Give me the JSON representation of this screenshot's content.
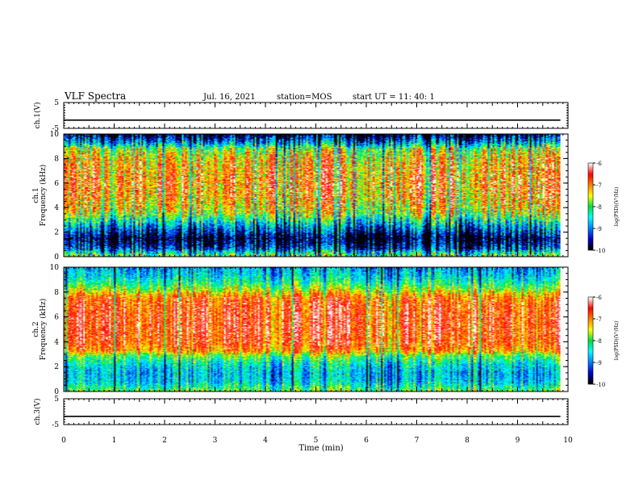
{
  "header": {
    "title": "VLF Spectra",
    "date": "Jul. 16, 2021",
    "station": "station=MOS",
    "start": "start UT =  11: 40: 1"
  },
  "chart_data": [
    {
      "type": "line",
      "ylabel": "ch.1(V)",
      "ylim": [
        -5,
        5
      ],
      "yticks": [
        "5",
        "-5"
      ],
      "xlim": [
        0,
        10
      ],
      "series": [
        {
          "values": [
            [
              0,
              -1.8
            ],
            [
              9.85,
              -1.8
            ]
          ]
        }
      ]
    },
    {
      "type": "heatmap",
      "ylabel": "ch.1\nFrequency (kHz)",
      "ylabel_lines": [
        "ch.1",
        "Frequency (kHz)"
      ],
      "ylim": [
        0,
        10
      ],
      "yticks": [
        "0",
        "2",
        "4",
        "6",
        "8",
        "10"
      ],
      "xlim": [
        0,
        10
      ],
      "data_end_min": 9.85,
      "colorbar": {
        "label": "log(PSD)(V²/Hz)",
        "range": [
          -10,
          -6
        ],
        "ticks": [
          "-6",
          "-7",
          "-8",
          "-9",
          "-10"
        ]
      },
      "frequency_profile_log_psd": [
        [
          0.0,
          -7.8
        ],
        [
          0.3,
          -8.4
        ],
        [
          0.6,
          -9.2
        ],
        [
          1.0,
          -9.6
        ],
        [
          1.5,
          -9.9
        ],
        [
          2.0,
          -9.3
        ],
        [
          2.5,
          -8.8
        ],
        [
          3.0,
          -8.2
        ],
        [
          3.5,
          -7.6
        ],
        [
          4.0,
          -7.3
        ],
        [
          5.0,
          -7.0
        ],
        [
          6.0,
          -6.9
        ],
        [
          7.0,
          -7.0
        ],
        [
          8.0,
          -7.2
        ],
        [
          8.8,
          -7.7
        ],
        [
          9.2,
          -8.6
        ],
        [
          9.6,
          -9.3
        ],
        [
          10.0,
          -9.8
        ]
      ]
    },
    {
      "type": "heatmap",
      "ylabel": "ch.2\nFrequency (kHz)",
      "ylabel_lines": [
        "ch.2",
        "Frequency (kHz)"
      ],
      "ylim": [
        0,
        10
      ],
      "yticks": [
        "0",
        "2",
        "4",
        "6",
        "8",
        "10"
      ],
      "xlim": [
        0,
        10
      ],
      "data_end_min": 9.85,
      "colorbar": {
        "label": "log(PSD)(V²/Hz)",
        "range": [
          -10,
          -6
        ],
        "ticks": [
          "-6",
          "-7",
          "-8",
          "-9",
          "-10"
        ]
      },
      "frequency_profile_log_psd": [
        [
          0.0,
          -7.8
        ],
        [
          0.3,
          -8.2
        ],
        [
          0.8,
          -8.6
        ],
        [
          1.5,
          -8.7
        ],
        [
          2.2,
          -8.4
        ],
        [
          2.8,
          -7.9
        ],
        [
          3.3,
          -7.0
        ],
        [
          4.0,
          -6.7
        ],
        [
          5.0,
          -6.6
        ],
        [
          6.0,
          -6.6
        ],
        [
          7.0,
          -6.7
        ],
        [
          7.6,
          -6.9
        ],
        [
          8.2,
          -7.6
        ],
        [
          8.8,
          -8.2
        ],
        [
          9.4,
          -8.6
        ],
        [
          10.0,
          -8.8
        ]
      ]
    },
    {
      "type": "line",
      "ylabel": "ch.3(V)",
      "ylim": [
        -5,
        5
      ],
      "yticks": [
        "5",
        "-5"
      ],
      "xlim": [
        0,
        10
      ],
      "series": [
        {
          "values": [
            [
              0,
              -1.8
            ],
            [
              9.85,
              -1.8
            ]
          ]
        }
      ]
    }
  ],
  "xaxis": {
    "label": "Time (min)",
    "ticks": [
      "0",
      "1",
      "2",
      "3",
      "4",
      "5",
      "6",
      "7",
      "8",
      "9",
      "10"
    ]
  },
  "colors": {
    "colormap": [
      "#000000",
      "#0000c8",
      "#0080ff",
      "#00ffff",
      "#00e040",
      "#ffff00",
      "#ff8000",
      "#ff0000",
      "#ffffff"
    ]
  }
}
